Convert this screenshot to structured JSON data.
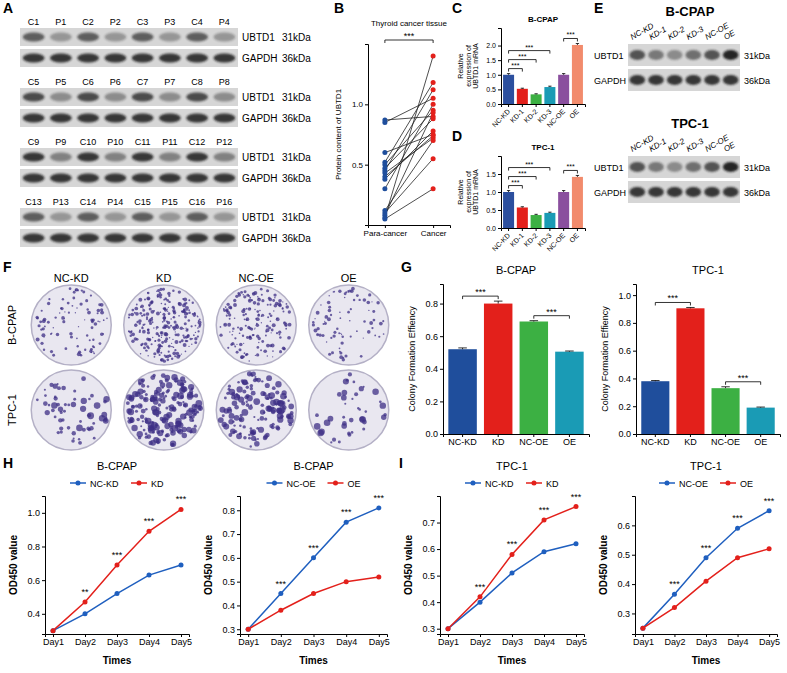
{
  "panel_letters": [
    "A",
    "B",
    "C",
    "D",
    "E",
    "F",
    "G",
    "H",
    "I"
  ],
  "blot_A": {
    "lanes": [
      [
        "C1",
        "P1",
        "C2",
        "P2",
        "C3",
        "P3",
        "C4",
        "P4"
      ],
      [
        "C5",
        "P5",
        "C6",
        "P6",
        "C7",
        "P7",
        "C8",
        "P8"
      ],
      [
        "C9",
        "P9",
        "C10",
        "P10",
        "C11",
        "P11",
        "C12",
        "P12"
      ],
      [
        "C13",
        "P13",
        "C14",
        "P14",
        "C15",
        "P15",
        "C16",
        "P16"
      ]
    ],
    "rows": [
      {
        "protein": "UBTD1",
        "size": "31kDa"
      },
      {
        "protein": "GAPDH",
        "size": "36kDa"
      }
    ]
  },
  "blot_E": {
    "panels": [
      {
        "title": "B-CPAP"
      },
      {
        "title": "TPC-1"
      }
    ],
    "lanes": [
      "NC-KD",
      "KD-1",
      "KD-2",
      "KD-3",
      "NC-OE",
      "OE"
    ],
    "rows": [
      {
        "protein": "UBTD1",
        "size": "31kDa"
      },
      {
        "protein": "GAPDH",
        "size": "36kDa"
      }
    ]
  },
  "colony_F": {
    "rows": [
      "B-CPAP",
      "TPC-1"
    ],
    "columns": [
      "NC-KD",
      "KD",
      "NC-OE",
      "OE"
    ]
  },
  "chart_data": [
    {
      "type": "paired_dot",
      "title": "Thyroid cancer tissue",
      "y_label": "Protein content of UBTD1",
      "categories": [
        "Para-cancer",
        "Cancer"
      ],
      "colors": [
        "#1f4e9c",
        "#e3201b"
      ],
      "series": [
        {
          "values": [
            0.87,
            0.9
          ]
        },
        {
          "values": [
            0.85,
            1.05
          ]
        },
        {
          "values": [
            0.6,
            0.75
          ]
        },
        {
          "values": [
            0.52,
            1.18
          ]
        },
        {
          "values": [
            0.5,
            0.95
          ]
        },
        {
          "values": [
            0.47,
            0.88
          ]
        },
        {
          "values": [
            0.45,
            1.12
          ]
        },
        {
          "values": [
            0.43,
            0.72
          ]
        },
        {
          "values": [
            0.4,
            0.74
          ]
        },
        {
          "values": [
            0.38,
            0.78
          ]
        },
        {
          "values": [
            0.3,
            1.0
          ]
        },
        {
          "values": [
            0.12,
            0.7
          ]
        },
        {
          "values": [
            0.1,
            0.55
          ]
        },
        {
          "values": [
            0.08,
            0.93
          ]
        },
        {
          "values": [
            0.06,
            1.4
          ]
        },
        {
          "values": [
            0.05,
            0.3
          ]
        }
      ],
      "ylim": [
        0,
        1.5
      ],
      "yticks": [
        0.5,
        {
          "value": 1,
          "label": "1.0"
        }
      ],
      "annotations": [
        {
          "text": "***",
          "from": 0,
          "to": 1
        }
      ]
    },
    {
      "type": "bar",
      "title": "B-CPAP",
      "y_label": "Relative expression of UBTD1 mRNA",
      "categories": [
        "NC-KD",
        "KD-1",
        "KD-2",
        "KD-3",
        "NC-OE",
        "OE"
      ],
      "values": [
        1.0,
        0.52,
        0.33,
        0.58,
        1.0,
        2.02
      ],
      "errors": [
        0.04,
        0.02,
        0.02,
        0.03,
        0.04,
        0.05
      ],
      "colors": [
        "#2c4f9e",
        "#e3201b",
        "#3cb043",
        "#1a9bb5",
        "#8a4f9e",
        "#f28b6c"
      ],
      "ylim": [
        0,
        2.6
      ],
      "yticks": [
        {
          "value": 0,
          "label": "0.0"
        },
        {
          "value": 0.5,
          "label": "0.5"
        },
        {
          "value": 1,
          "label": "1.0"
        },
        {
          "value": 1.5,
          "label": "1.5"
        },
        {
          "value": 2,
          "label": "2.0"
        }
      ],
      "annotations": [
        {
          "text": "***",
          "from": 0,
          "to": 1
        },
        {
          "text": "***",
          "from": 0,
          "to": 2
        },
        {
          "text": "***",
          "from": 0,
          "to": 3
        },
        {
          "text": "***",
          "from": 4,
          "to": 5
        }
      ]
    },
    {
      "type": "bar",
      "title": "TPC-1",
      "y_label": "Relative expression of UBTD1 mRNA",
      "categories": [
        "NC-KD",
        "KD-1",
        "KD-2",
        "KD-3",
        "NC-OE",
        "OE"
      ],
      "values": [
        1.0,
        0.57,
        0.36,
        0.42,
        1.0,
        1.42
      ],
      "errors": [
        0.04,
        0.02,
        0.02,
        0.02,
        0.04,
        0.04
      ],
      "colors": [
        "#2c4f9e",
        "#e3201b",
        "#3cb043",
        "#1a9bb5",
        "#8a4f9e",
        "#f28b6c"
      ],
      "ylim": [
        0,
        2.0
      ],
      "yticks": [
        {
          "value": 0,
          "label": "0.0"
        },
        {
          "value": 0.5,
          "label": "0.5"
        },
        {
          "value": 1,
          "label": "1.0"
        },
        {
          "value": 1.5,
          "label": "1.5"
        }
      ],
      "annotations": [
        {
          "text": "***",
          "from": 0,
          "to": 1
        },
        {
          "text": "***",
          "from": 0,
          "to": 2
        },
        {
          "text": "***",
          "from": 0,
          "to": 3
        },
        {
          "text": "***",
          "from": 4,
          "to": 5
        }
      ]
    },
    {
      "type": "bar",
      "title": "B-CPAP",
      "y_label": "Colony Formation Effiency",
      "categories": [
        "NC-KD",
        "KD",
        "NC-OE",
        "OE"
      ],
      "values": [
        0.52,
        0.8,
        0.69,
        0.505
      ],
      "errors": [
        0.008,
        0.015,
        0.005,
        0.004
      ],
      "colors": [
        "#1f4e9c",
        "#e3201b",
        "#3cb043",
        "#1a9bb5"
      ],
      "ylim": [
        0,
        0.92
      ],
      "yticks": [
        {
          "value": 0,
          "label": "0.0"
        },
        {
          "value": 0.2,
          "label": "0.2"
        },
        {
          "value": 0.4,
          "label": "0.4"
        },
        {
          "value": 0.6,
          "label": "0.6"
        },
        {
          "value": 0.8,
          "label": "0.8"
        }
      ],
      "annotations": [
        {
          "text": "***",
          "from": 0,
          "to": 1
        },
        {
          "text": "***",
          "from": 2,
          "to": 3
        }
      ]
    },
    {
      "type": "bar",
      "title": "TPC-1",
      "y_label": "Colony Formation Effiency",
      "categories": [
        "NC-KD",
        "KD",
        "NC-OE",
        "OE"
      ],
      "values": [
        0.38,
        0.905,
        0.33,
        0.19
      ],
      "errors": [
        0.005,
        0.006,
        0.01,
        0.004
      ],
      "colors": [
        "#1f4e9c",
        "#e3201b",
        "#3cb043",
        "#1a9bb5"
      ],
      "ylim": [
        0,
        1.08
      ],
      "yticks": [
        {
          "value": 0,
          "label": "0.0"
        },
        {
          "value": 0.2,
          "label": "0.2"
        },
        {
          "value": 0.4,
          "label": "0.4"
        },
        {
          "value": 0.6,
          "label": "0.6"
        },
        {
          "value": 0.8,
          "label": "0.8"
        },
        {
          "value": 1,
          "label": "1.0"
        }
      ],
      "annotations": [
        {
          "text": "***",
          "from": 0,
          "to": 1
        },
        {
          "text": "***",
          "from": 2,
          "to": 3
        }
      ]
    },
    {
      "type": "line",
      "title": "B-CPAP",
      "x_label": "Times",
      "y_label": "OD450 value",
      "categories": [
        "Day1",
        "Day2",
        "Day3",
        "Day4",
        "Day5"
      ],
      "marker": "circle",
      "legend": "top",
      "series": [
        {
          "name": "NC-KD",
          "color": "#1f5fbf",
          "values": [
            0.3,
            0.4,
            0.52,
            0.63,
            0.69
          ]
        },
        {
          "name": "KD",
          "color": "#e3201b",
          "values": [
            0.3,
            0.47,
            0.69,
            0.89,
            1.02
          ]
        }
      ],
      "ylim": [
        0.28,
        1.1
      ],
      "yticks": [
        0.4,
        0.6,
        0.8,
        {
          "value": 1,
          "label": "1.0"
        }
      ],
      "annotations": [
        {
          "text": "**",
          "category": 1
        },
        {
          "text": "***",
          "category": 2
        },
        {
          "text": "***",
          "category": 3
        },
        {
          "text": "***",
          "category": 4
        }
      ]
    },
    {
      "type": "line",
      "title": "B-CPAP",
      "x_label": "Times",
      "y_label": "OD450 value",
      "categories": [
        "Day1",
        "Day2",
        "Day3",
        "Day4",
        "Day5"
      ],
      "marker": "circle",
      "legend": "top",
      "series": [
        {
          "name": "NC-OE",
          "color": "#1f5fbf",
          "values": [
            0.3,
            0.45,
            0.6,
            0.75,
            0.81
          ]
        },
        {
          "name": "OE",
          "color": "#e3201b",
          "values": [
            0.3,
            0.38,
            0.45,
            0.5,
            0.52
          ]
        }
      ],
      "ylim": [
        0.28,
        0.86
      ],
      "yticks": [
        0.3,
        0.4,
        0.5,
        0.6,
        0.7,
        0.8
      ],
      "annotations": [
        {
          "text": "***",
          "category": 1
        },
        {
          "text": "***",
          "category": 2
        },
        {
          "text": "***",
          "category": 3
        },
        {
          "text": "***",
          "category": 4
        }
      ]
    },
    {
      "type": "line",
      "title": "TPC-1",
      "x_label": "Times",
      "y_label": "OD450 value",
      "categories": [
        "Day1",
        "Day2",
        "Day3",
        "Day4",
        "Day5"
      ],
      "marker": "circle",
      "legend": "top",
      "series": [
        {
          "name": "NC-KD",
          "color": "#1f5fbf",
          "values": [
            0.3,
            0.4,
            0.51,
            0.59,
            0.62
          ]
        },
        {
          "name": "KD",
          "color": "#e3201b",
          "values": [
            0.3,
            0.42,
            0.58,
            0.71,
            0.76
          ]
        }
      ],
      "ylim": [
        0.28,
        0.8
      ],
      "yticks": [
        0.3,
        0.4,
        0.5,
        0.6,
        0.7
      ],
      "annotations": [
        {
          "text": "***",
          "category": 1
        },
        {
          "text": "***",
          "category": 2
        },
        {
          "text": "***",
          "category": 3
        },
        {
          "text": "***",
          "category": 4
        }
      ]
    },
    {
      "type": "line",
      "title": "TPC-1",
      "x_label": "Times",
      "y_label": "OD450 value",
      "categories": [
        "Day1",
        "Day2",
        "Day3",
        "Day4",
        "Day5"
      ],
      "marker": "circle",
      "legend": "top",
      "series": [
        {
          "name": "NC-OE",
          "color": "#1f5fbf",
          "values": [
            0.25,
            0.365,
            0.49,
            0.59,
            0.65
          ]
        },
        {
          "name": "OE",
          "color": "#e3201b",
          "values": [
            0.25,
            0.32,
            0.41,
            0.49,
            0.52
          ]
        }
      ],
      "ylim": [
        0.23,
        0.7
      ],
      "yticks": [
        0.3,
        0.4,
        0.5,
        0.6
      ],
      "annotations": [
        {
          "text": "***",
          "category": 1
        },
        {
          "text": "***",
          "category": 2
        },
        {
          "text": "***",
          "category": 3
        },
        {
          "text": "***",
          "category": 4
        }
      ]
    }
  ]
}
